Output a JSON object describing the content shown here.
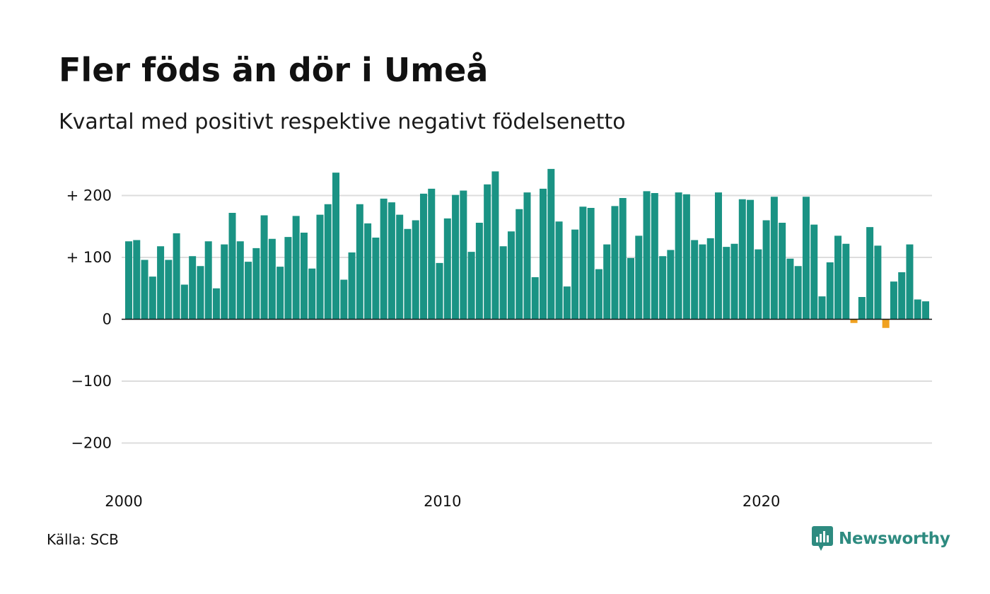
{
  "chart_data": {
    "type": "bar",
    "title": "Fler föds än dör i Umeå",
    "subtitle": "Kvartal med positivt respektive negativt födelsenetto",
    "x_start_year": 2000,
    "x_ticks": [
      "2000",
      "2010",
      "2020"
    ],
    "y_ticks": [
      {
        "value": 200,
        "label": "+ 200"
      },
      {
        "value": 100,
        "label": "+ 100"
      },
      {
        "value": 0,
        "label": "0"
      },
      {
        "value": -100,
        "label": "−100"
      },
      {
        "value": -200,
        "label": "−200"
      }
    ],
    "ylim": [
      -250,
      250
    ],
    "grid": true,
    "colors": {
      "positive": "#1a9384",
      "negative": "#f0a120",
      "grid": "#dddddd",
      "zero": "#111111"
    },
    "values": [
      126,
      128,
      96,
      69,
      118,
      96,
      139,
      56,
      102,
      86,
      126,
      50,
      121,
      172,
      126,
      93,
      115,
      168,
      130,
      85,
      133,
      167,
      140,
      82,
      169,
      186,
      237,
      64,
      108,
      186,
      155,
      132,
      195,
      189,
      169,
      146,
      160,
      203,
      211,
      91,
      163,
      201,
      208,
      109,
      156,
      218,
      239,
      118,
      142,
      178,
      205,
      68,
      211,
      243,
      158,
      53,
      145,
      182,
      180,
      81,
      121,
      183,
      196,
      99,
      135,
      207,
      204,
      102,
      112,
      205,
      202,
      128,
      121,
      131,
      205,
      117,
      122,
      194,
      193,
      113,
      160,
      198,
      156,
      98,
      86,
      198,
      153,
      37,
      92,
      135,
      122,
      -6,
      36,
      149,
      119,
      -14,
      61,
      76,
      121,
      32,
      29
    ]
  },
  "source": "Källa: SCB",
  "logo": {
    "icon": "newsworthy-chart-bubble-icon",
    "text": "Newsworthy"
  }
}
